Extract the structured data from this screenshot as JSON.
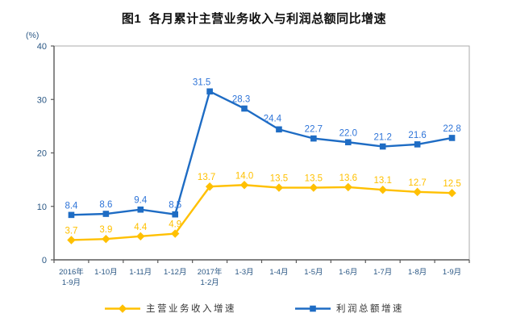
{
  "chart_data": {
    "type": "line",
    "title": "图1  各月累计主营业务收入与利润总额同比增速",
    "unit_label": "(%)",
    "categories": [
      "2016年\n1-9月",
      "1-10月",
      "1-11月",
      "1-12月",
      "2017年\n1-2月",
      "1-3月",
      "1-4月",
      "1-5月",
      "1-6月",
      "1-7月",
      "1-8月",
      "1-9月"
    ],
    "series": [
      {
        "name": "主营业务收入增速",
        "marker": "diamond",
        "color": "#FFC000",
        "label_color": "#FFC000",
        "values": [
          3.7,
          3.9,
          4.4,
          4.9,
          13.7,
          14.0,
          13.5,
          13.5,
          13.6,
          13.1,
          12.7,
          12.5
        ]
      },
      {
        "name": "利润总额增速",
        "marker": "square",
        "color": "#1E6CC4",
        "label_color": "#2E74D8",
        "values": [
          8.4,
          8.6,
          9.4,
          8.5,
          31.5,
          28.3,
          24.4,
          22.7,
          22.0,
          21.2,
          21.6,
          22.8
        ]
      }
    ],
    "ylim": [
      0,
      40
    ],
    "yticks": [
      0,
      10,
      20,
      30,
      40
    ],
    "xlabel": "",
    "ylabel": "(%)",
    "grid": false,
    "legend_position": "bottom",
    "colors": {
      "axis_text": "#2A5784",
      "axis_line": "#595959",
      "box_line": "#ABABAB",
      "legend_text": "#333333",
      "title_text": "#111111"
    }
  }
}
